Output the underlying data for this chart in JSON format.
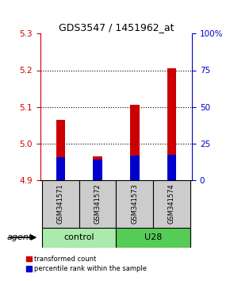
{
  "title": "GDS3547 / 1451962_at",
  "samples": [
    "GSM341571",
    "GSM341572",
    "GSM341573",
    "GSM341574"
  ],
  "bar_red_tops": [
    5.065,
    4.965,
    5.105,
    5.205
  ],
  "bar_blue_tops": [
    4.963,
    4.955,
    4.966,
    4.968
  ],
  "bar_bottom": 4.9,
  "bar_width": 0.25,
  "blue_bar_width": 0.25,
  "ylim": [
    4.9,
    5.3
  ],
  "yticks_left": [
    4.9,
    5.0,
    5.1,
    5.2,
    5.3
  ],
  "yticks_right_pct": [
    0,
    25,
    50,
    75,
    100
  ],
  "ytick_right_labels": [
    "0",
    "25",
    "50",
    "75",
    "100%"
  ],
  "left_axis_color": "#cc0000",
  "right_axis_color": "#0000cc",
  "bar_red_color": "#cc0000",
  "bar_blue_color": "#0000cc",
  "legend_red": "transformed count",
  "legend_blue": "percentile rank within the sample",
  "agent_label": "agent",
  "sample_box_color": "#cccccc",
  "group_ctrl_color": "#aaeaaa",
  "group_u28_color": "#55cc55",
  "title_fontsize": 9,
  "tick_fontsize": 7.5,
  "sample_fontsize": 6,
  "group_fontsize": 8,
  "legend_fontsize": 6
}
